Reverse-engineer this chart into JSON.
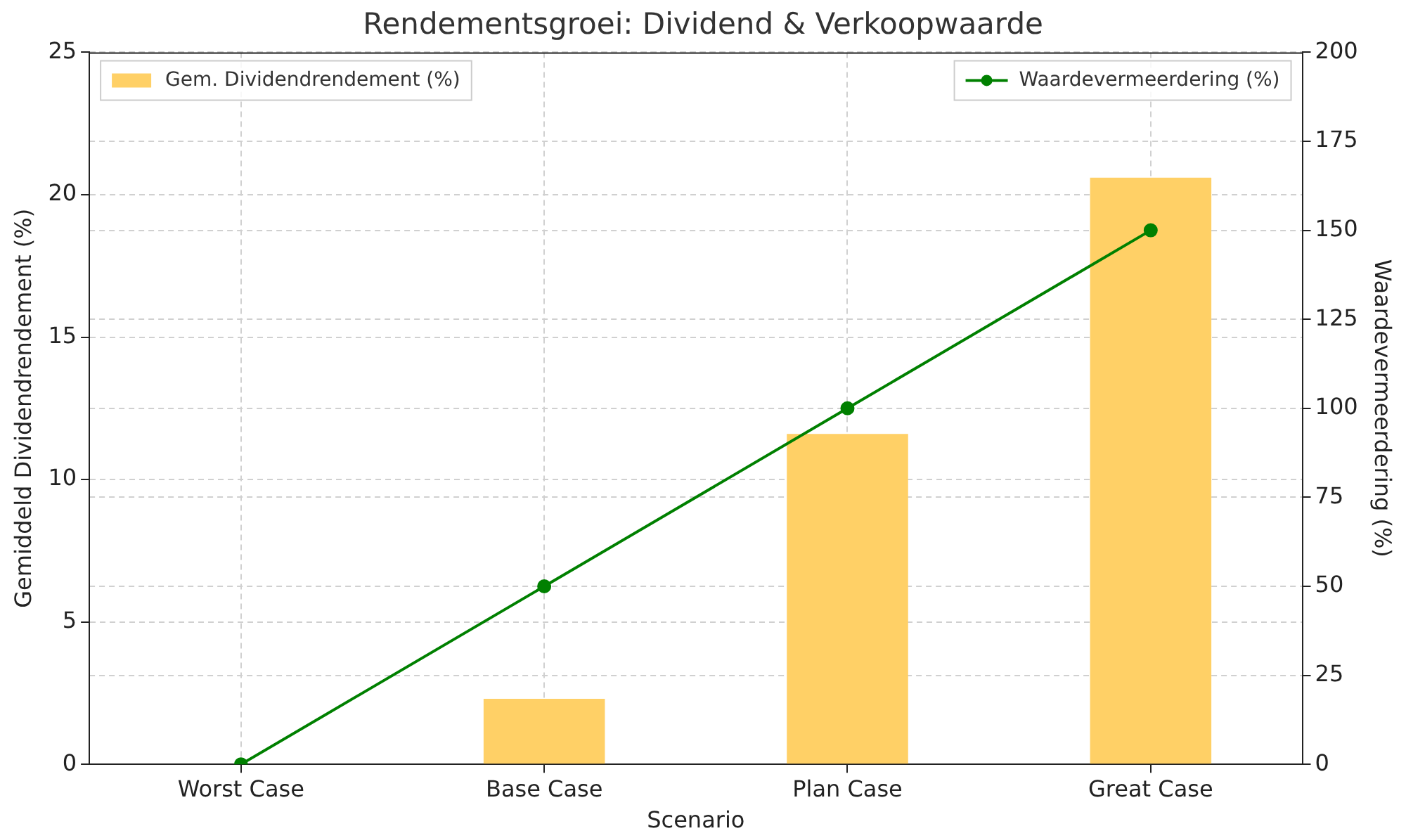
{
  "chart_data": {
    "type": "bar",
    "title": "Rendementsgroei: Dividend & Verkoopwaarde",
    "xlabel": "Scenario",
    "ylabel": "Gemiddeld Dividendrendement (%)",
    "y2label": "Waardevermeerdering (%)",
    "categories": [
      "Worst Case",
      "Base Case",
      "Plan Case",
      "Great Case"
    ],
    "series": [
      {
        "name": "Gem. Dividendrendement (%)",
        "color": "#ffd066",
        "values": [
          0,
          2.3,
          11.6,
          20.6
        ]
      },
      {
        "name": "Waardevermeerdering (%)",
        "type": "line",
        "axis": "y2",
        "color": "#008000",
        "values": [
          0,
          50,
          100,
          150
        ]
      }
    ],
    "ylim": [
      0,
      25
    ],
    "yticks": [
      0,
      5,
      10,
      15,
      20,
      25
    ],
    "y2lim": [
      0,
      200
    ],
    "y2ticks": [
      0,
      25,
      50,
      75,
      100,
      125,
      150,
      175,
      200
    ],
    "grid": true,
    "legend": "top",
    "marker": "circle",
    "line_style": "solid"
  }
}
